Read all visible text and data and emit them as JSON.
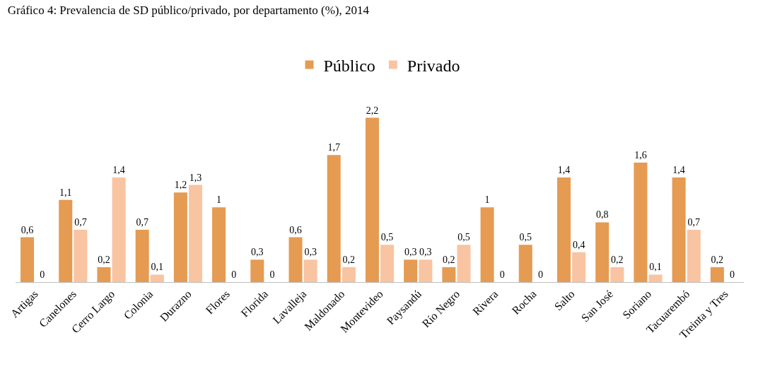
{
  "chart_data": {
    "type": "bar",
    "title": "Gráfico 4: Prevalencia de SD público/privado, por departamento (%), 2014",
    "categories": [
      "Artigas",
      "Canelones",
      "Cerro Largo",
      "Colonia",
      "Durazno",
      "Flores",
      "Florida",
      "Lavalleja",
      "Maldonado",
      "Montevideo",
      "Paysandú",
      "Río Negro",
      "Rivera",
      "Rocha",
      "Salto",
      "San José",
      "Soriano",
      "Tacuarembó",
      "Treinta y Tres"
    ],
    "series": [
      {
        "name": "Público",
        "color": "#e59b52",
        "values": [
          0.6,
          1.1,
          0.2,
          0.7,
          1.2,
          1,
          0.3,
          0.6,
          1.7,
          2.2,
          0.3,
          0.2,
          1,
          0.5,
          1.4,
          0.8,
          1.6,
          1.4,
          0.2
        ],
        "value_labels": [
          "0,6",
          "1,1",
          "0,2",
          "0,7",
          "1,2",
          "1",
          "0,3",
          "0,6",
          "1,7",
          "2,2",
          "0,3",
          "0,2",
          "1",
          "0,5",
          "1,4",
          "0,8",
          "1,6",
          "1,4",
          "0,2"
        ]
      },
      {
        "name": "Privado",
        "color": "#f9c4a2",
        "values": [
          0,
          0.7,
          1.4,
          0.1,
          1.3,
          0,
          0,
          0.3,
          0.2,
          0.5,
          0.3,
          0.5,
          0,
          0,
          0.4,
          0.2,
          0.1,
          0.7,
          0
        ],
        "value_labels": [
          "0",
          "0,7",
          "1,4",
          "0,1",
          "1,3",
          "0",
          "0",
          "0,3",
          "0,2",
          "0,5",
          "0,3",
          "0,5",
          "0",
          "0",
          "0,4",
          "0,2",
          "0,1",
          "0,7",
          "0"
        ]
      }
    ],
    "legend": "top",
    "grid": false
  }
}
